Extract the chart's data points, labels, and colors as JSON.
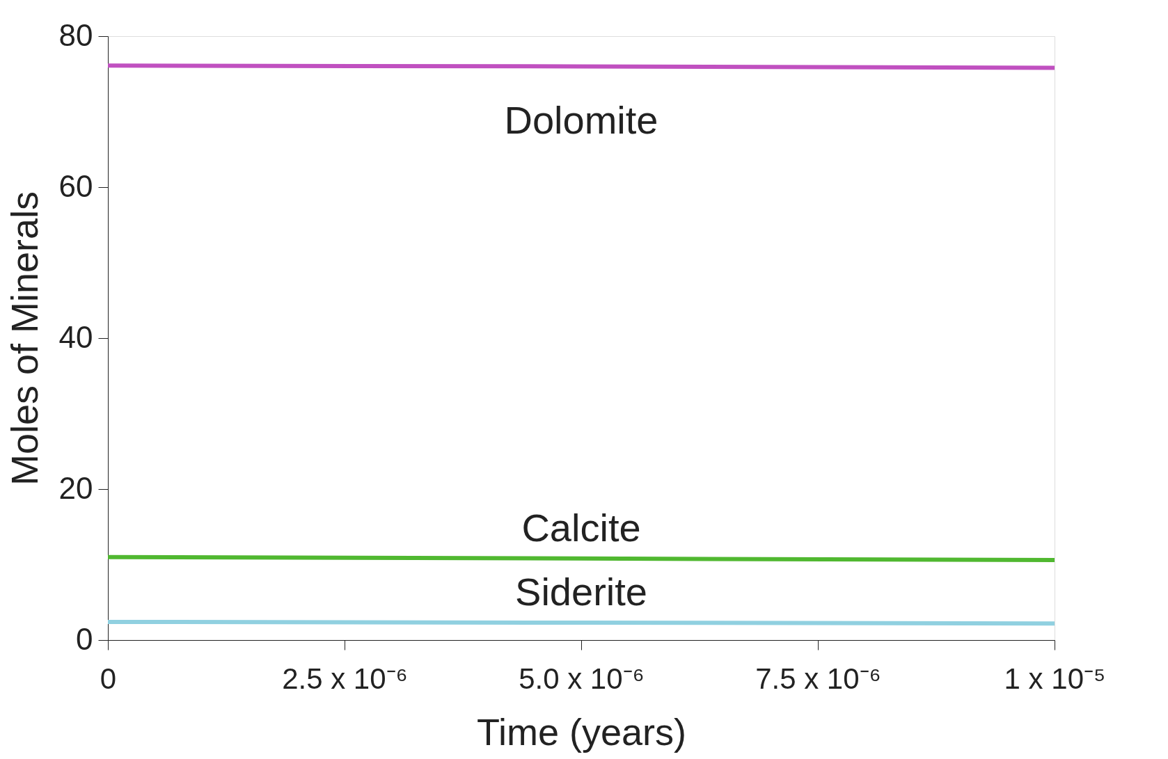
{
  "chart_data": {
    "type": "line",
    "xlabel": "Time (years)",
    "ylabel": "Moles of Minerals",
    "x": [
      0,
      5e-06,
      1e-05
    ],
    "series": [
      {
        "name": "Dolomite",
        "color": "#c050c0",
        "values": [
          76.1,
          76.0,
          75.8
        ]
      },
      {
        "name": "Calcite",
        "color": "#50b830",
        "values": [
          11.0,
          10.8,
          10.6
        ]
      },
      {
        "name": "Siderite",
        "color": "#90d0e0",
        "values": [
          2.4,
          2.3,
          2.2
        ]
      }
    ],
    "xlim": [
      0,
      1e-05
    ],
    "xticks": [
      0,
      {
        "value": 2.5e-06,
        "label": "2.5 x 10⁻⁶"
      },
      {
        "value": 5e-06,
        "label": "5.0 x 10⁻⁶"
      },
      {
        "value": 7.5e-06,
        "label": "7.5 x 10⁻⁶"
      },
      {
        "value": 1e-05,
        "label": "1 x 10⁻⁵"
      }
    ],
    "ylim": [
      0,
      80
    ],
    "yticks": [
      0,
      20,
      40,
      60,
      80
    ],
    "grid": false,
    "legend": false,
    "marker": "none",
    "line_style": "solid"
  }
}
